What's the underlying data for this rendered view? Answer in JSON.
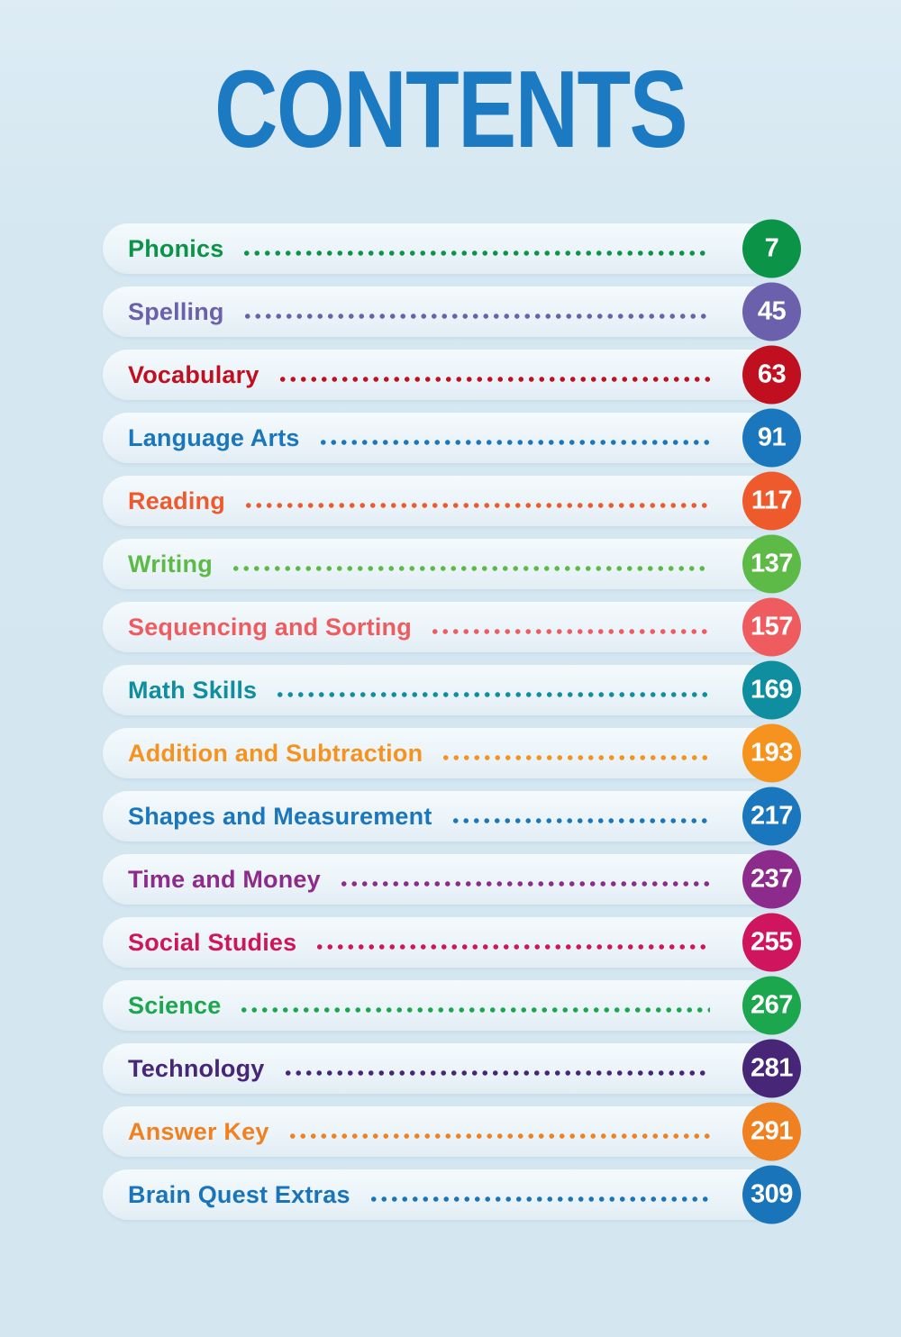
{
  "page": {
    "title": "CONTENTS",
    "title_color": "#1b7ac1",
    "background_color": "#d4e6f0",
    "row_background_color": "#ecf4f9"
  },
  "contents": {
    "entries": [
      {
        "label": "Phonics",
        "page": "7",
        "color": "#0b9347"
      },
      {
        "label": "Spelling",
        "page": "45",
        "color": "#6a60ab"
      },
      {
        "label": "Vocabulary",
        "page": "63",
        "color": "#c01020"
      },
      {
        "label": "Language Arts",
        "page": "91",
        "color": "#1a76bd"
      },
      {
        "label": "Reading",
        "page": "117",
        "color": "#ee5a2b"
      },
      {
        "label": "Writing",
        "page": "137",
        "color": "#5eba47"
      },
      {
        "label": "Sequencing and Sorting",
        "page": "157",
        "color": "#ef5c5f"
      },
      {
        "label": "Math Skills",
        "page": "169",
        "color": "#0f8ea0"
      },
      {
        "label": "Addition and Subtraction",
        "page": "193",
        "color": "#f6921e"
      },
      {
        "label": "Shapes and Measurement",
        "page": "217",
        "color": "#1a76bd"
      },
      {
        "label": "Time and Money",
        "page": "237",
        "color": "#8d2b8d"
      },
      {
        "label": "Social Studies",
        "page": "255",
        "color": "#d0155f"
      },
      {
        "label": "Science",
        "page": "267",
        "color": "#1ca64d"
      },
      {
        "label": "Technology",
        "page": "281",
        "color": "#472678"
      },
      {
        "label": "Answer Key",
        "page": "291",
        "color": "#ef8120"
      },
      {
        "label": "Brain Quest Extras",
        "page": "309",
        "color": "#1a74ba"
      }
    ]
  }
}
